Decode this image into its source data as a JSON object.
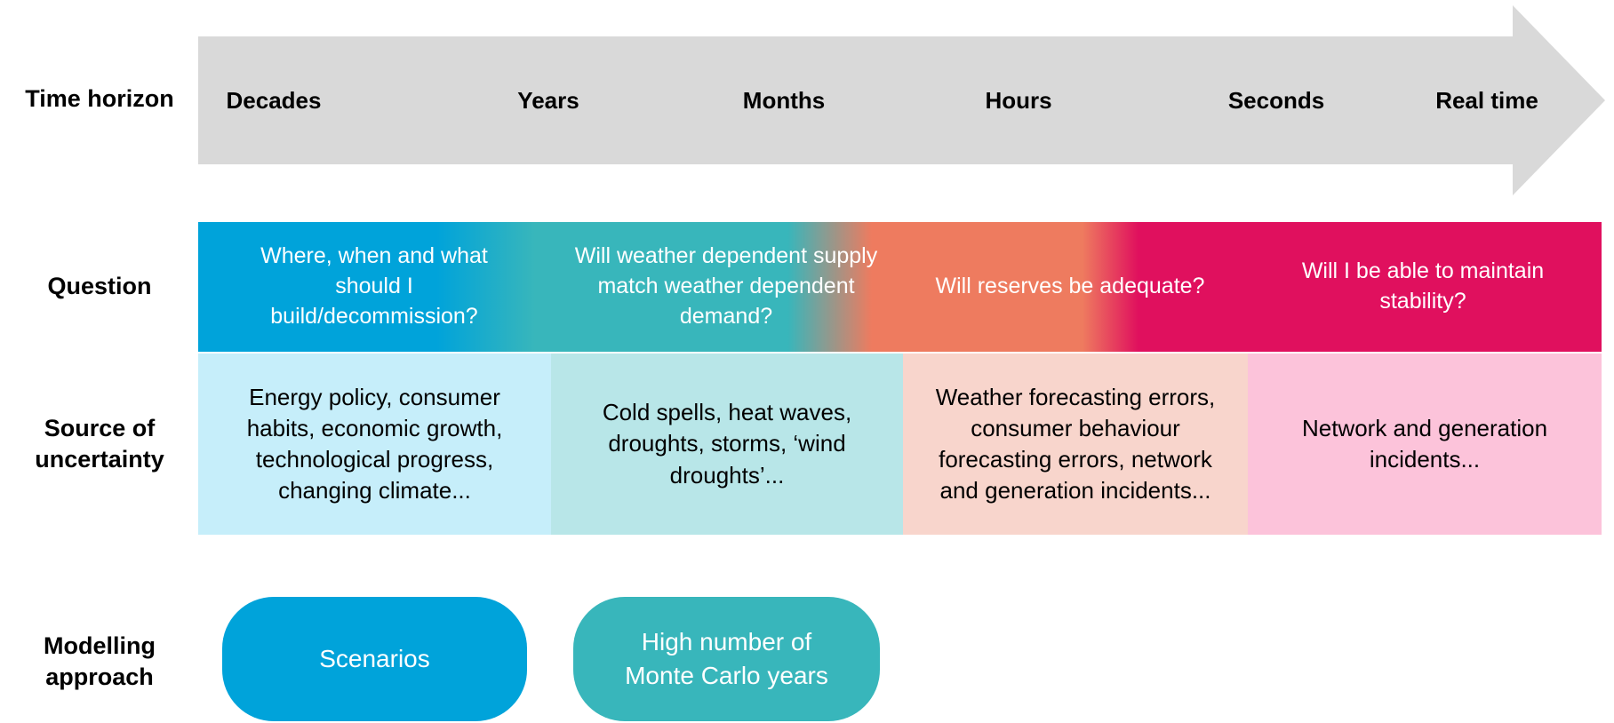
{
  "row_labels": [
    "Time horizon",
    "Question",
    "Source of uncertainty",
    "Modelling approach"
  ],
  "time_horizon": [
    "Decades",
    "Years",
    "Months",
    "Hours",
    "Seconds",
    "Real time"
  ],
  "questions": [
    "Where, when and what should I build/decommission?",
    "Will weather dependent supply match weather dependent demand?",
    "Will reserves be adequate?",
    "Will I be able to maintain stability?"
  ],
  "uncertainty": [
    "Energy policy, consumer habits, economic growth, technological progress, changing climate...",
    "Cold spells, heat waves, droughts, storms, ‘wind droughts’...",
    "Weather forecasting errors, consumer behaviour forecasting errors, network and generation incidents...",
    "Network and generation incidents..."
  ],
  "approaches": [
    "Scenarios",
    "High number of Monte Carlo years"
  ]
}
